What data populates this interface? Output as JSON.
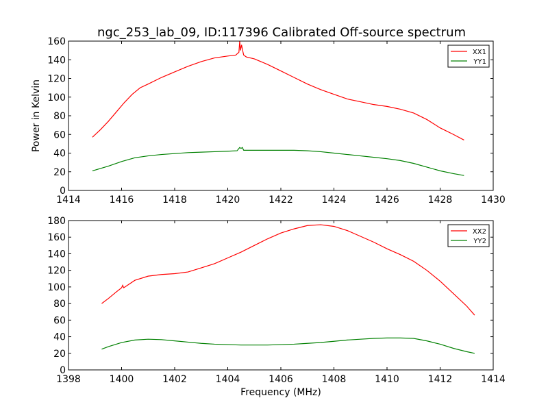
{
  "figure": {
    "title": "ngc_253_lab_09, ID:117396 Calibrated Off-source spectrum"
  },
  "chart_data": [
    {
      "type": "line",
      "title": "ngc_253_lab_09, ID:117396 Calibrated Off-source spectrum",
      "xlabel": "",
      "ylabel": "Power in Kelvin",
      "xlim": [
        1414,
        1430
      ],
      "ylim": [
        0,
        160
      ],
      "xticks": [
        1414,
        1416,
        1418,
        1420,
        1422,
        1424,
        1426,
        1428,
        1430
      ],
      "yticks": [
        0,
        20,
        40,
        60,
        80,
        100,
        120,
        140,
        160
      ],
      "legend_position": "top-right",
      "grid": false,
      "series": [
        {
          "name": "XX1",
          "color": "#ff0000",
          "x": [
            1414.9,
            1415.2,
            1415.5,
            1415.8,
            1416.1,
            1416.4,
            1416.7,
            1417.0,
            1417.5,
            1418.0,
            1418.5,
            1419.0,
            1419.5,
            1420.0,
            1420.3,
            1420.42,
            1420.45,
            1420.48,
            1420.52,
            1420.56,
            1420.6,
            1420.7,
            1421.0,
            1421.5,
            1422.0,
            1422.5,
            1423.0,
            1423.5,
            1424.0,
            1424.5,
            1425.0,
            1425.5,
            1426.0,
            1426.5,
            1427.0,
            1427.5,
            1428.0,
            1428.5,
            1428.9
          ],
          "values": [
            57,
            65,
            74,
            84,
            94,
            103,
            110,
            114,
            121,
            127,
            133,
            138,
            142,
            144,
            145,
            148,
            160,
            150,
            156,
            150,
            145,
            143,
            141,
            135,
            128,
            121,
            114,
            108,
            103,
            98,
            95,
            92,
            90,
            87,
            83,
            76,
            67,
            60,
            54
          ]
        },
        {
          "name": "YY1",
          "color": "#008000",
          "x": [
            1414.9,
            1415.5,
            1416.0,
            1416.5,
            1417.0,
            1417.5,
            1418.0,
            1418.5,
            1419.0,
            1419.5,
            1420.0,
            1420.35,
            1420.45,
            1420.5,
            1420.55,
            1420.6,
            1421.0,
            1421.5,
            1422.0,
            1422.5,
            1423.0,
            1423.5,
            1424.0,
            1424.5,
            1425.0,
            1425.5,
            1426.0,
            1426.5,
            1427.0,
            1427.5,
            1428.0,
            1428.5,
            1428.9
          ],
          "values": [
            21,
            26,
            31,
            35,
            37,
            38.5,
            39.5,
            40.5,
            41,
            41.5,
            42,
            42.5,
            46,
            45,
            46,
            43,
            43,
            43,
            43,
            43,
            42.5,
            41.5,
            40,
            38.5,
            37,
            35.5,
            34,
            32,
            29,
            25,
            21,
            18,
            16
          ]
        }
      ]
    },
    {
      "type": "line",
      "title": "",
      "xlabel": "Frequency (MHz)",
      "ylabel": "",
      "xlim": [
        1398,
        1414
      ],
      "ylim": [
        0,
        180
      ],
      "xticks": [
        1398,
        1400,
        1402,
        1404,
        1406,
        1408,
        1410,
        1412,
        1414
      ],
      "yticks": [
        0,
        20,
        40,
        60,
        80,
        100,
        120,
        140,
        160,
        180
      ],
      "legend_position": "top-right",
      "grid": false,
      "series": [
        {
          "name": "XX2",
          "color": "#ff0000",
          "x": [
            1399.25,
            1399.5,
            1399.8,
            1400.0,
            1400.04,
            1400.08,
            1400.5,
            1401.0,
            1401.5,
            1402.0,
            1402.5,
            1403.0,
            1403.5,
            1404.0,
            1404.5,
            1405.0,
            1405.5,
            1406.0,
            1406.5,
            1407.0,
            1407.5,
            1408.0,
            1408.5,
            1409.0,
            1409.5,
            1410.0,
            1410.5,
            1411.0,
            1411.5,
            1412.0,
            1412.5,
            1413.0,
            1413.3
          ],
          "values": [
            80,
            86,
            94,
            99,
            102,
            99,
            108,
            113,
            115,
            116,
            118,
            123,
            128,
            135,
            142,
            150,
            158,
            165,
            170,
            174,
            175,
            173,
            168,
            161,
            154,
            146,
            139,
            131,
            120,
            107,
            92,
            77,
            66
          ]
        },
        {
          "name": "YY2",
          "color": "#008000",
          "x": [
            1399.25,
            1399.5,
            1400.0,
            1400.5,
            1401.0,
            1401.5,
            1402.0,
            1402.5,
            1403.0,
            1403.5,
            1404.0,
            1404.5,
            1405.0,
            1405.5,
            1406.0,
            1406.5,
            1407.0,
            1407.5,
            1408.0,
            1408.5,
            1409.0,
            1409.5,
            1410.0,
            1410.5,
            1411.0,
            1411.5,
            1412.0,
            1412.5,
            1413.0,
            1413.3
          ],
          "values": [
            25,
            28,
            33,
            36,
            37,
            36.5,
            35,
            33.5,
            32,
            31,
            30.5,
            30,
            30,
            30,
            30.5,
            31,
            32,
            33,
            34.5,
            36,
            37,
            38,
            38.5,
            38.5,
            38,
            35,
            31,
            26,
            22,
            20
          ]
        }
      ]
    }
  ]
}
